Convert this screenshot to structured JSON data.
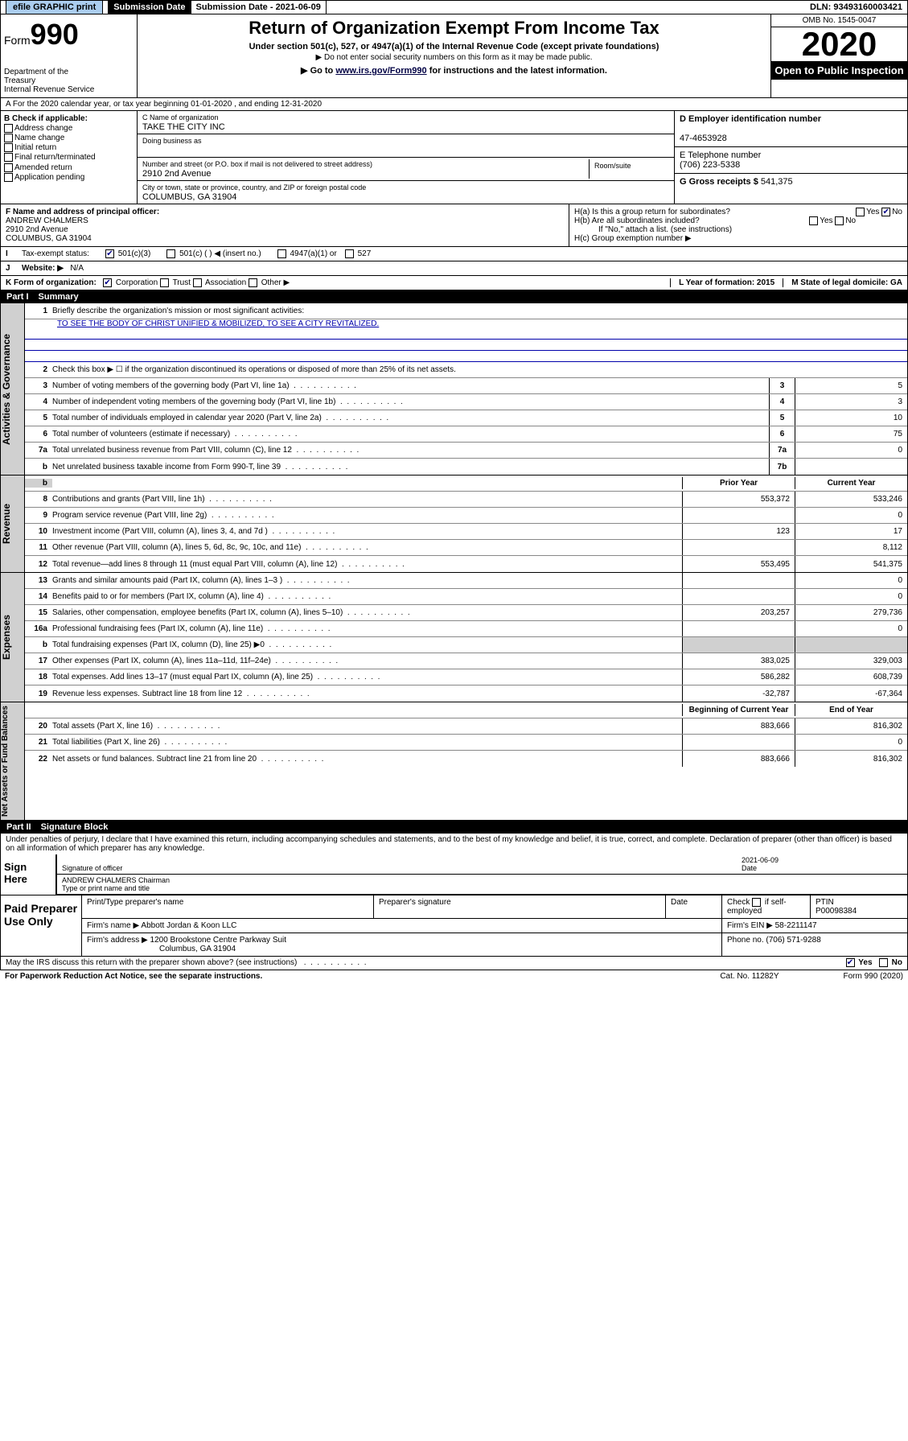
{
  "topbar": {
    "efile": "efile GRAPHIC print",
    "sub_date_label": "Submission Date - 2021-06-09",
    "dln": "DLN: 93493160003421"
  },
  "header": {
    "form_label": "Form",
    "form_num": "990",
    "dept": "Department of the Treasury\nInternal Revenue Service",
    "title": "Return of Organization Exempt From Income Tax",
    "sub1": "Under section 501(c), 527, or 4947(a)(1) of the Internal Revenue Code (except private foundations)",
    "sub2": "▶ Do not enter social security numbers on this form as it may be made public.",
    "sub3_pre": "▶ Go to ",
    "sub3_link": "www.irs.gov/Form990",
    "sub3_post": " for instructions and the latest information.",
    "omb": "OMB No. 1545-0047",
    "year": "2020",
    "open": "Open to Public Inspection"
  },
  "rowA": "A For the 2020 calendar year, or tax year beginning 01-01-2020   , and ending 12-31-2020",
  "sectionB": {
    "label": "B Check if applicable:",
    "items": [
      "Address change",
      "Name change",
      "Initial return",
      "Final return/terminated",
      "Amended return",
      "Application pending"
    ]
  },
  "sectionC": {
    "name_label": "C Name of organization",
    "name": "TAKE THE CITY INC",
    "dba_label": "Doing business as",
    "addr_label": "Number and street (or P.O. box if mail is not delivered to street address)",
    "room_label": "Room/suite",
    "addr": "2910 2nd Avenue",
    "city_label": "City or town, state or province, country, and ZIP or foreign postal code",
    "city": "COLUMBUS, GA  31904"
  },
  "sectionD": {
    "label": "D Employer identification number",
    "val": "47-4653928"
  },
  "sectionE": {
    "label": "E Telephone number",
    "val": "(706) 223-5338"
  },
  "sectionG": {
    "label": "G Gross receipts $",
    "val": "541,375"
  },
  "sectionF": {
    "label": "F Name and address of principal officer:",
    "name": "ANDREW CHALMERS",
    "addr": "2910 2nd Avenue",
    "city": "COLUMBUS, GA  31904"
  },
  "sectionH": {
    "a": "H(a)  Is this a group return for subordinates?",
    "b": "H(b)  Are all subordinates included?",
    "b_note": "If \"No,\" attach a list. (see instructions)",
    "c": "H(c)  Group exemption number ▶"
  },
  "sectionI": {
    "label": "Tax-exempt status:",
    "opt1": "501(c)(3)",
    "opt2": "501(c) (  ) ◀ (insert no.)",
    "opt3": "4947(a)(1) or",
    "opt4": "527"
  },
  "sectionJ": {
    "label": "Website: ▶",
    "val": "N/A"
  },
  "sectionK": {
    "label": "K Form of organization:",
    "opts": [
      "Corporation",
      "Trust",
      "Association",
      "Other ▶"
    ],
    "L": "L Year of formation: 2015",
    "M": "M State of legal domicile: GA"
  },
  "part1": {
    "num": "Part I",
    "title": "Summary"
  },
  "governance": {
    "label": "Activities & Governance",
    "l1": "Briefly describe the organization's mission or most significant activities:",
    "l1_text": "TO SEE THE BODY OF CHRIST UNIFIED & MOBILIZED, TO SEE A CITY REVITALIZED.",
    "l2": "Check this box ▶ ☐  if the organization discontinued its operations or disposed of more than 25% of its net assets.",
    "rows": [
      {
        "n": "3",
        "d": "Number of voting members of the governing body (Part VI, line 1a)",
        "c": "3",
        "v": "5"
      },
      {
        "n": "4",
        "d": "Number of independent voting members of the governing body (Part VI, line 1b)",
        "c": "4",
        "v": "3"
      },
      {
        "n": "5",
        "d": "Total number of individuals employed in calendar year 2020 (Part V, line 2a)",
        "c": "5",
        "v": "10"
      },
      {
        "n": "6",
        "d": "Total number of volunteers (estimate if necessary)",
        "c": "6",
        "v": "75"
      },
      {
        "n": "7a",
        "d": "Total unrelated business revenue from Part VIII, column (C), line 12",
        "c": "7a",
        "v": "0"
      },
      {
        "n": "b",
        "d": "Net unrelated business taxable income from Form 990-T, line 39",
        "c": "7b",
        "v": ""
      }
    ]
  },
  "revenue": {
    "label": "Revenue",
    "hdr_prior": "Prior Year",
    "hdr_curr": "Current Year",
    "rows": [
      {
        "n": "8",
        "d": "Contributions and grants (Part VIII, line 1h)",
        "p": "553,372",
        "c": "533,246"
      },
      {
        "n": "9",
        "d": "Program service revenue (Part VIII, line 2g)",
        "p": "",
        "c": "0"
      },
      {
        "n": "10",
        "d": "Investment income (Part VIII, column (A), lines 3, 4, and 7d )",
        "p": "123",
        "c": "17"
      },
      {
        "n": "11",
        "d": "Other revenue (Part VIII, column (A), lines 5, 6d, 8c, 9c, 10c, and 11e)",
        "p": "",
        "c": "8,112"
      },
      {
        "n": "12",
        "d": "Total revenue—add lines 8 through 11 (must equal Part VIII, column (A), line 12)",
        "p": "553,495",
        "c": "541,375"
      }
    ]
  },
  "expenses": {
    "label": "Expenses",
    "rows": [
      {
        "n": "13",
        "d": "Grants and similar amounts paid (Part IX, column (A), lines 1–3 )",
        "p": "",
        "c": "0"
      },
      {
        "n": "14",
        "d": "Benefits paid to or for members (Part IX, column (A), line 4)",
        "p": "",
        "c": "0"
      },
      {
        "n": "15",
        "d": "Salaries, other compensation, employee benefits (Part IX, column (A), lines 5–10)",
        "p": "203,257",
        "c": "279,736"
      },
      {
        "n": "16a",
        "d": "Professional fundraising fees (Part IX, column (A), line 11e)",
        "p": "",
        "c": "0"
      },
      {
        "n": "b",
        "d": "Total fundraising expenses (Part IX, column (D), line 25) ▶0",
        "p": "shade",
        "c": "shade"
      },
      {
        "n": "17",
        "d": "Other expenses (Part IX, column (A), lines 11a–11d, 11f–24e)",
        "p": "383,025",
        "c": "329,003"
      },
      {
        "n": "18",
        "d": "Total expenses. Add lines 13–17 (must equal Part IX, column (A), line 25)",
        "p": "586,282",
        "c": "608,739"
      },
      {
        "n": "19",
        "d": "Revenue less expenses. Subtract line 18 from line 12",
        "p": "-32,787",
        "c": "-67,364"
      }
    ]
  },
  "netassets": {
    "label": "Net Assets or Fund Balances",
    "hdr_prior": "Beginning of Current Year",
    "hdr_curr": "End of Year",
    "rows": [
      {
        "n": "20",
        "d": "Total assets (Part X, line 16)",
        "p": "883,666",
        "c": "816,302"
      },
      {
        "n": "21",
        "d": "Total liabilities (Part X, line 26)",
        "p": "",
        "c": "0"
      },
      {
        "n": "22",
        "d": "Net assets or fund balances. Subtract line 21 from line 20",
        "p": "883,666",
        "c": "816,302"
      }
    ]
  },
  "part2": {
    "num": "Part II",
    "title": "Signature Block"
  },
  "sig": {
    "decl": "Under penalties of perjury, I declare that I have examined this return, including accompanying schedules and statements, and to the best of my knowledge and belief, it is true, correct, and complete. Declaration of preparer (other than officer) is based on all information of which preparer has any knowledge.",
    "sign_here": "Sign Here",
    "sig_officer": "Signature of officer",
    "date": "2021-06-09",
    "date_label": "Date",
    "name_title": "ANDREW CHALMERS  Chairman",
    "name_title_label": "Type or print name and title"
  },
  "paid": {
    "label": "Paid Preparer Use Only",
    "h1": "Print/Type preparer's name",
    "h2": "Preparer's signature",
    "h3": "Date",
    "h4_pre": "Check",
    "h4_post": "if self-employed",
    "h5": "PTIN",
    "ptin": "P00098384",
    "firm_label": "Firm's name    ▶",
    "firm": "Abbott Jordan & Koon LLC",
    "ein_label": "Firm's EIN ▶",
    "ein": "58-2211147",
    "addr_label": "Firm's address ▶",
    "addr": "1200 Brookstone Centre Parkway Suit",
    "addr2": "Columbus, GA  31904",
    "phone_label": "Phone no.",
    "phone": "(706) 571-9288"
  },
  "bottom": {
    "q": "May the IRS discuss this return with the preparer shown above? (see instructions)",
    "yes": "Yes",
    "no": "No"
  },
  "footer": {
    "l": "For Paperwork Reduction Act Notice, see the separate instructions.",
    "m": "Cat. No. 11282Y",
    "r": "Form 990 (2020)"
  }
}
